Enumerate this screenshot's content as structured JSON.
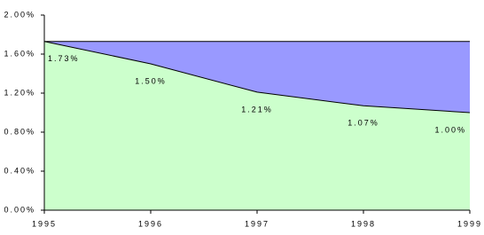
{
  "chart_data": {
    "type": "area",
    "x": [
      1995,
      1996,
      1997,
      1998,
      1999
    ],
    "xlim": [
      1995,
      1999
    ],
    "xticks": [
      1995,
      1996,
      1997,
      1998,
      1999
    ],
    "ylim": [
      0,
      2
    ],
    "yticks": [
      {
        "value": 0,
        "label": "0.00%"
      },
      {
        "value": 0.4,
        "label": "0.40%"
      },
      {
        "value": 0.8,
        "label": "0.80%"
      },
      {
        "value": 1.2,
        "label": "1.20%"
      },
      {
        "value": 1.6,
        "label": "1.60%"
      },
      {
        "value": 2,
        "label": "2.00%"
      }
    ],
    "series": [
      {
        "color": "#9999ff",
        "values": [
          1.73,
          1.73,
          1.73,
          1.73,
          1.73
        ]
      },
      {
        "color": "#ccffcc",
        "values": [
          1.73,
          1.5,
          1.21,
          1.07,
          1.0
        ],
        "value_labels": [
          "1.73%",
          "1.50%",
          "1.21%",
          "1.07%",
          "1.00%"
        ]
      }
    ]
  }
}
